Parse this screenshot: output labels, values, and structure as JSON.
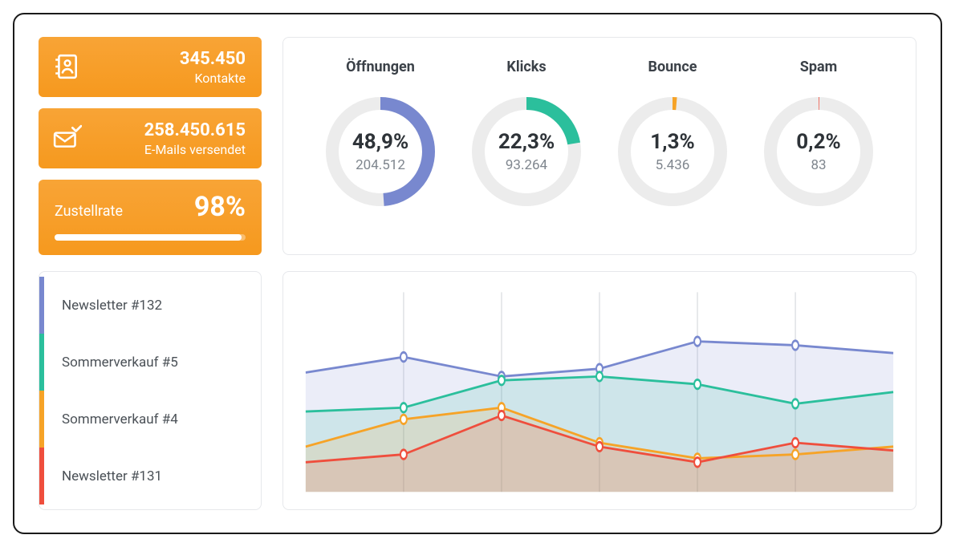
{
  "colors": {
    "orange_grad_top": "#f8a436",
    "orange_grad_bottom": "#f6991e",
    "blue": "#7888cf",
    "teal": "#2bbf9c",
    "amber": "#f6a327",
    "red": "#ef4e3d",
    "ring_track": "#ececec",
    "panel_border": "#e6e8eb",
    "text_dark": "#2e3338",
    "text_muted": "#7f868e",
    "grid": "#cfd3d8"
  },
  "stats": {
    "contacts": {
      "value": "345.450",
      "label": "Kontakte",
      "icon": "contacts-icon"
    },
    "emails": {
      "value": "258.450.615",
      "label": "E-Mails versendet",
      "icon": "email-sent-icon"
    },
    "delivery": {
      "label": "Zustellrate",
      "value": "98%",
      "percent": 98
    }
  },
  "donuts": [
    {
      "key": "opens",
      "title": "Öffnungen",
      "percent": 48.9,
      "percent_label": "48,9%",
      "count": "204.512",
      "color": "#7888cf"
    },
    {
      "key": "clicks",
      "title": "Klicks",
      "percent": 22.3,
      "percent_label": "22,3%",
      "count": "93.264",
      "color": "#2bbf9c"
    },
    {
      "key": "bounce",
      "title": "Bounce",
      "percent": 1.3,
      "percent_label": "1,3%",
      "count": "5.436",
      "color": "#f6a327"
    },
    {
      "key": "spam",
      "title": "Spam",
      "percent": 0.2,
      "percent_label": "0,2%",
      "count": "83",
      "color": "#ef4e3d"
    }
  ],
  "legend": [
    {
      "label": "Newsletter #132",
      "color": "#7888cf"
    },
    {
      "label": "Sommerverkauf #5",
      "color": "#2bbf9c"
    },
    {
      "label": "Sommerverkauf #4",
      "color": "#f6a327"
    },
    {
      "label": "Newsletter #131",
      "color": "#ef4e3d"
    }
  ],
  "line_chart": {
    "type": "line",
    "x_count": 7,
    "y_range": [
      0,
      100
    ],
    "grid_color": "#cfd3d8",
    "marker_radius": 4,
    "line_width": 2,
    "fill_opacity": 0.15,
    "series": [
      {
        "name": "Newsletter #132",
        "color": "#7888cf",
        "values": [
          60,
          68,
          58,
          62,
          76,
          74,
          70
        ]
      },
      {
        "name": "Sommerverkauf #5",
        "color": "#2bbf9c",
        "values": [
          40,
          42,
          56,
          58,
          54,
          44,
          50
        ]
      },
      {
        "name": "Sommerverkauf #4",
        "color": "#f6a327",
        "values": [
          22,
          36,
          42,
          24,
          16,
          18,
          22
        ]
      },
      {
        "name": "Newsletter #131",
        "color": "#ef4e3d",
        "values": [
          14,
          18,
          38,
          22,
          14,
          24,
          20
        ]
      }
    ]
  }
}
